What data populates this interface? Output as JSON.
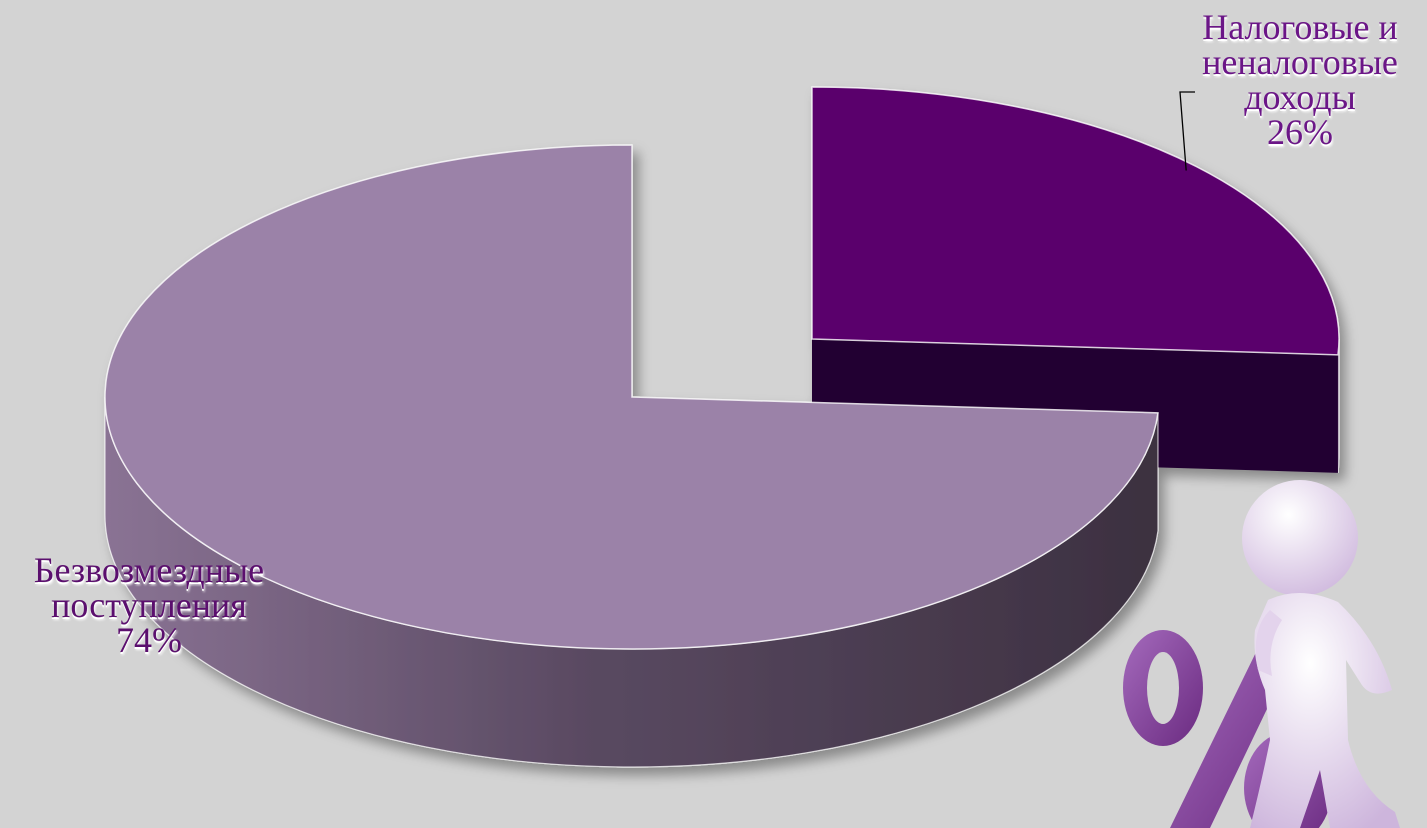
{
  "chart_data": {
    "type": "pie",
    "style": "3d-exploded",
    "title": "",
    "slices": [
      {
        "name": "Безвозмездные поступления",
        "label_lines": [
          "Безвозмездные",
          "поступления"
        ],
        "value": 74,
        "value_label": "74%",
        "color": "#9b82a8",
        "side_color": "#473a4d",
        "label_color": "#5b0f6e"
      },
      {
        "name": "Налоговые и неналоговые доходы",
        "label_lines": [
          "Налоговые и",
          "неналоговые",
          "доходы"
        ],
        "value": 26,
        "value_label": "26%",
        "color": "#5a006c",
        "side_color": "#220030",
        "label_color": "#6b1687"
      }
    ],
    "legend": "none"
  },
  "decoration": {
    "percent_sign": "%",
    "figure": "white-person-leaning-on-percent-sign",
    "percent_color": "#7a3a8e",
    "figure_color": "#e9ddf0"
  }
}
